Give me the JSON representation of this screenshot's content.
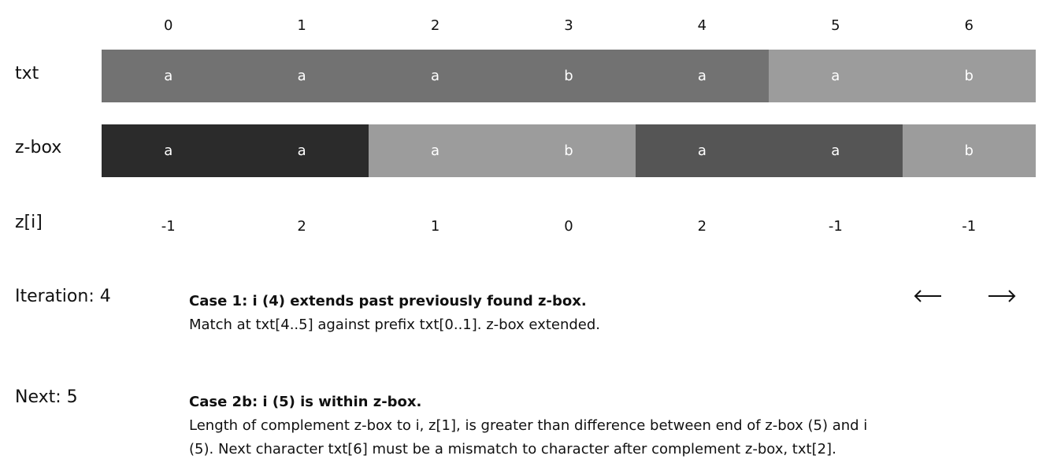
{
  "indices": [
    "0",
    "1",
    "2",
    "3",
    "4",
    "5",
    "6"
  ],
  "rows": {
    "txt_label": "txt",
    "zbox_label": "z-box",
    "zi_label": "z[i]"
  },
  "txt_cells": [
    {
      "char": "a",
      "color": "#727272"
    },
    {
      "char": "a",
      "color": "#727272"
    },
    {
      "char": "a",
      "color": "#727272"
    },
    {
      "char": "b",
      "color": "#727272"
    },
    {
      "char": "a",
      "color": "#727272"
    },
    {
      "char": "a",
      "color": "#9c9c9c"
    },
    {
      "char": "b",
      "color": "#9c9c9c"
    }
  ],
  "zbox_cells": [
    {
      "char": "a",
      "color": "#2b2b2b"
    },
    {
      "char": "a",
      "color": "#2b2b2b"
    },
    {
      "char": "a",
      "color": "#9c9c9c"
    },
    {
      "char": "b",
      "color": "#9c9c9c"
    },
    {
      "char": "a",
      "color": "#555555"
    },
    {
      "char": "a",
      "color": "#555555"
    },
    {
      "char": "b",
      "color": "#9c9c9c"
    }
  ],
  "z_values": [
    "-1",
    "2",
    "1",
    "0",
    "2",
    "-1",
    "-1"
  ],
  "iteration": {
    "label": "Iteration: 4",
    "title": "Case 1: i (4) extends past previously found z-box.",
    "text": "Match at txt[4..5] against prefix txt[0..1]. z-box extended."
  },
  "next": {
    "label": "Next: 5",
    "title": "Case 2b: i (5) is within z-box.",
    "text": "Length of complement z-box to i, z[1], is greater than difference between end of z-box (5) and i (5). Next character txt[6] must be a mismatch to character after complement z-box, txt[2]."
  },
  "nav": {
    "prev_icon": "arrow-left-icon",
    "next_icon": "arrow-right-icon"
  }
}
